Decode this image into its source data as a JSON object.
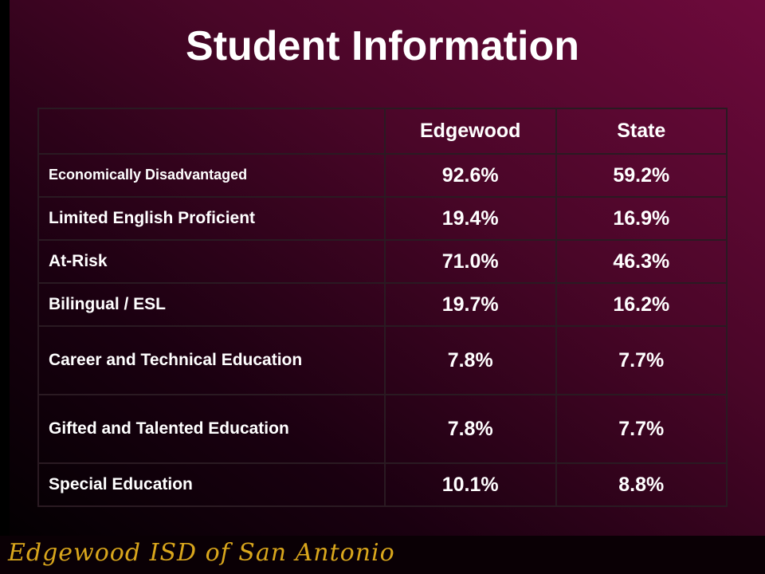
{
  "header": {
    "title": "Student Information"
  },
  "table": {
    "columns": [
      "Edgewood",
      "State"
    ],
    "rows": [
      [
        "Economically Disadvantaged",
        "92.6%",
        "59.2%"
      ],
      [
        "Limited English Proficient",
        "19.4%",
        "16.9%"
      ],
      [
        "At-Risk",
        "71.0%",
        "46.3%"
      ],
      [
        "Bilingual / ESL",
        "19.7%",
        "16.2%"
      ],
      [
        "Career and Technical Education",
        "7.8%",
        "7.7%"
      ],
      [
        "Gifted and Talented Education",
        "7.8%",
        "7.7%"
      ],
      [
        "Special Education",
        "10.1%",
        "8.8%"
      ]
    ]
  },
  "footer": {
    "text": "Edgewood ISD of San Antonio"
  }
}
